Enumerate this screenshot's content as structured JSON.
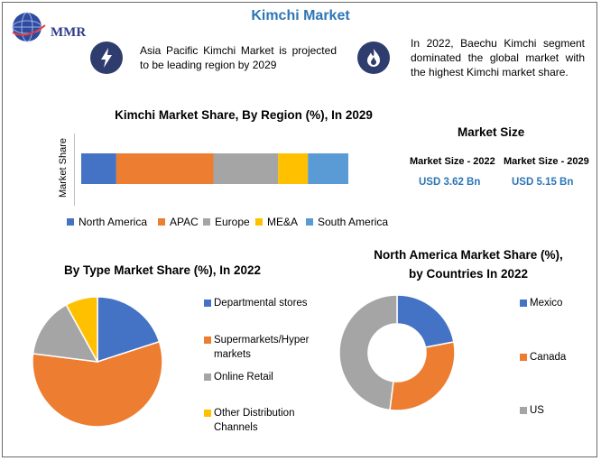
{
  "page": {
    "title": "Kimchi Market",
    "logo_text": "MMR",
    "note_left": "Asia Pacific Kimchi Market is projected to be leading region by 2029",
    "note_right": "In 2022, Baechu Kimchi segment dominated the global market with the highest Kimchi market share.",
    "icon_left": "lightning-icon",
    "icon_right": "fire-icon"
  },
  "market_size": {
    "title": "Market Size",
    "items": [
      {
        "label": "Market Size - 2022",
        "value": "USD 3.62 Bn"
      },
      {
        "label": "Market Size - 2029",
        "value": "USD 5.15 Bn"
      }
    ]
  },
  "chart_data": [
    {
      "type": "bar",
      "stacked": true,
      "orientation": "horizontal",
      "title": "Kimchi Market Share, By Region (%), In 2029",
      "ylabel": "Market Share",
      "legend": "bottom",
      "series": [
        {
          "name": "North America",
          "value": 13,
          "color": "#4472c4"
        },
        {
          "name": "APAC",
          "value": 36,
          "color": "#ed7d31"
        },
        {
          "name": "Europe",
          "value": 24,
          "color": "#a5a5a5"
        },
        {
          "name": "ME&A",
          "value": 11,
          "color": "#ffc000"
        },
        {
          "name": "South America",
          "value": 15,
          "color": "#5b9bd5"
        }
      ]
    },
    {
      "type": "pie",
      "title": "By Type Market Share (%), In 2022",
      "legend": "right",
      "slices": [
        {
          "name": "Departmental stores",
          "value": 20,
          "color": "#4472c4"
        },
        {
          "name": "Supermarkets/Hyper markets",
          "value": 57,
          "color": "#ed7d31"
        },
        {
          "name": "Online Retail",
          "value": 15,
          "color": "#a5a5a5"
        },
        {
          "name": "Other Distribution Channels",
          "value": 8,
          "color": "#ffc000"
        }
      ]
    },
    {
      "type": "pie",
      "donut": true,
      "title": "North America Market Share (%), by Countries In 2022",
      "legend": "right",
      "slices": [
        {
          "name": "Mexico",
          "value": 22,
          "color": "#4472c4"
        },
        {
          "name": "Canada",
          "value": 30,
          "color": "#ed7d31"
        },
        {
          "name": "US",
          "value": 48,
          "color": "#a5a5a5"
        }
      ]
    }
  ]
}
